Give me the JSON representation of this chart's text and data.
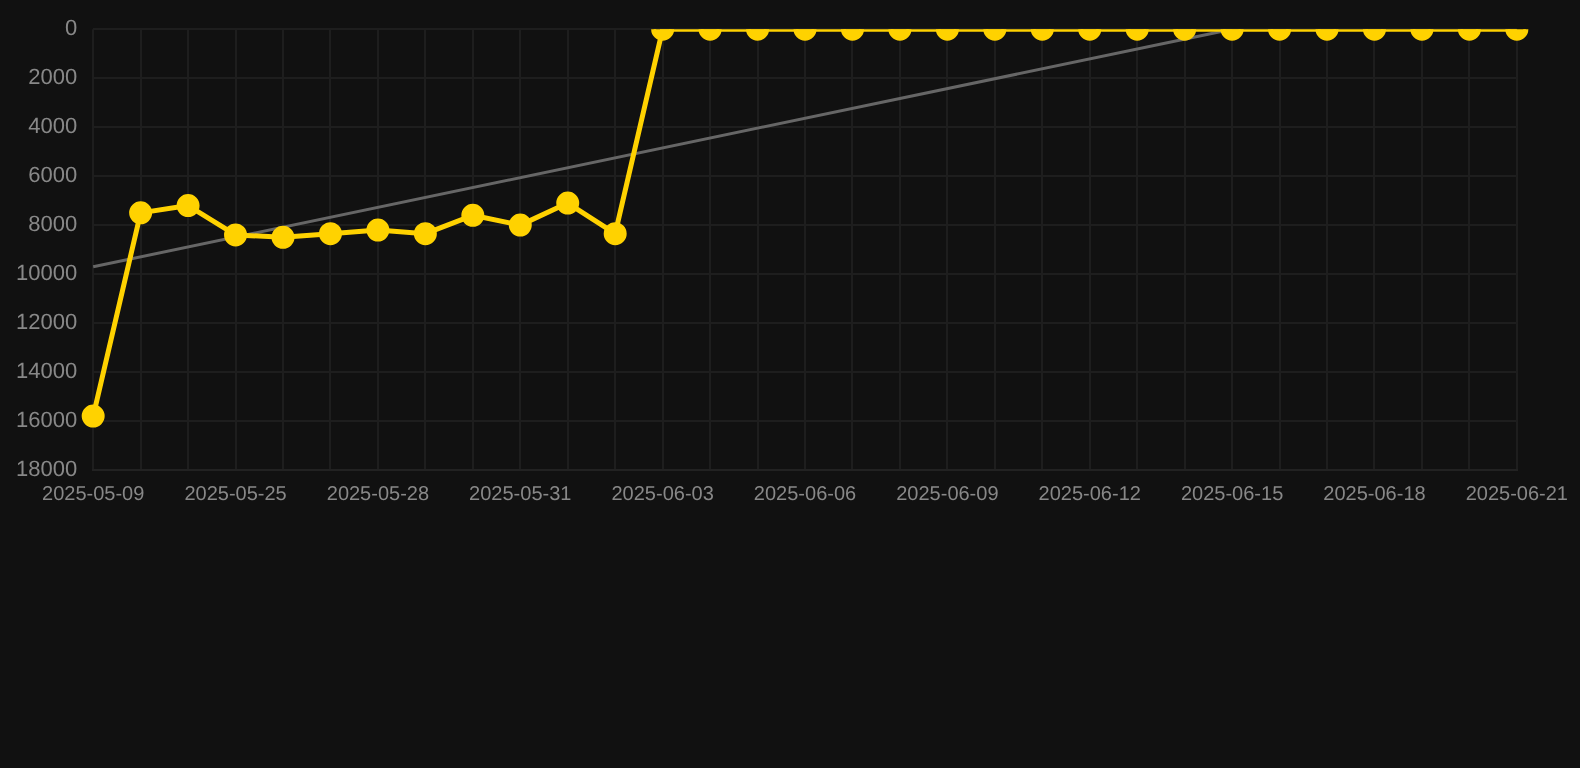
{
  "chart_data": {
    "type": "line",
    "categories": [
      "2025-05-09",
      null,
      null,
      "2025-05-25",
      null,
      null,
      "2025-05-28",
      null,
      null,
      "2025-05-31",
      null,
      null,
      "2025-06-03",
      null,
      null,
      "2025-06-06",
      null,
      null,
      "2025-06-09",
      null,
      null,
      "2025-06-12",
      null,
      null,
      "2025-06-15",
      null,
      null,
      "2025-06-18",
      null,
      null,
      "2025-06-21"
    ],
    "series": [
      {
        "color": "#ffd200",
        "marker": "circle",
        "values": [
          15800,
          7500,
          7200,
          8400,
          8500,
          8350,
          8200,
          8350,
          7600,
          8000,
          7100,
          8350,
          0,
          0,
          0,
          0,
          0,
          0,
          0,
          0,
          0,
          0,
          0,
          0,
          0,
          0,
          0,
          0,
          0,
          0,
          0
        ]
      },
      {
        "type": "line",
        "color": "#666666",
        "marker": "none",
        "values": [
          9700,
          null,
          null,
          null,
          null,
          null,
          null,
          null,
          null,
          null,
          null,
          null,
          null,
          null,
          null,
          null,
          null,
          null,
          null,
          null,
          null,
          null,
          null,
          null,
          0,
          null,
          null,
          null,
          null,
          null,
          null
        ]
      }
    ],
    "ylim": [
      18000,
      0
    ],
    "yticks": [
      0,
      2000,
      4000,
      6000,
      8000,
      10000,
      12000,
      14000,
      16000,
      18000
    ],
    "grid": true,
    "legend": false
  }
}
